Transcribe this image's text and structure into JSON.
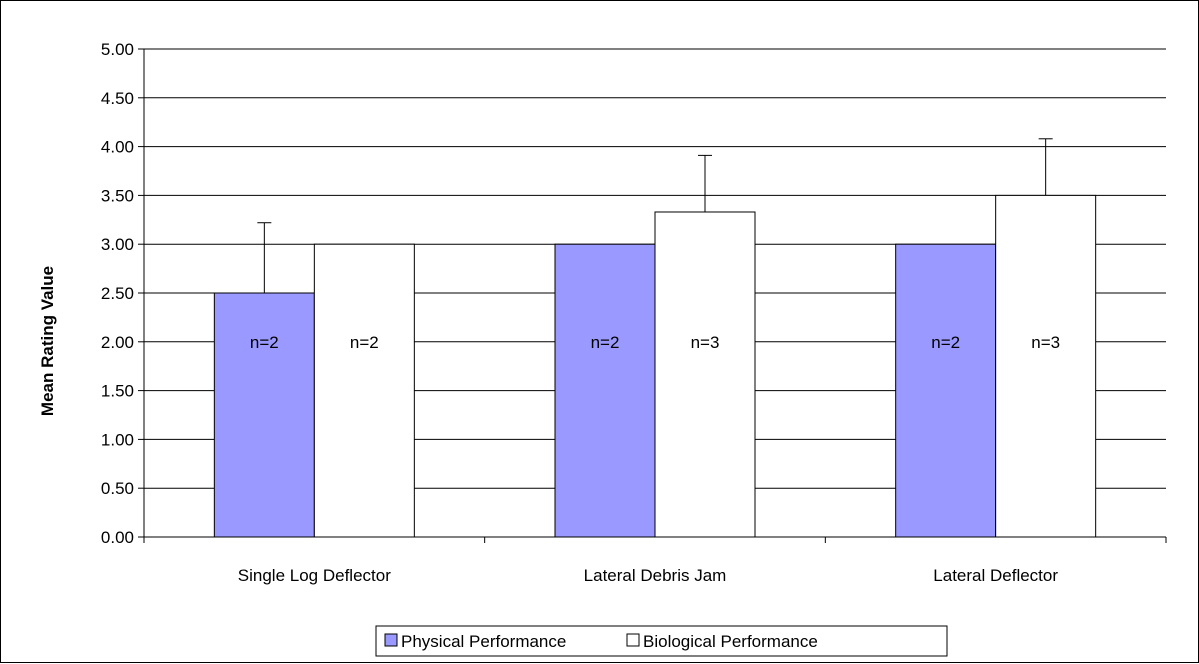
{
  "chart_data": {
    "type": "bar",
    "ylabel": "Mean Rating Value",
    "ylim": [
      0,
      5
    ],
    "ytick_step": 0.5,
    "yticks": [
      "0.00",
      "0.50",
      "1.00",
      "1.50",
      "2.00",
      "2.50",
      "3.00",
      "3.50",
      "4.00",
      "4.50",
      "5.00"
    ],
    "grid": true,
    "legend_position": "bottom",
    "categories": [
      "Single Log Deflector",
      "Lateral Debris Jam",
      "Lateral Deflector"
    ],
    "series": [
      {
        "name": "Physical Performance",
        "color": "#9999ff",
        "values": [
          2.5,
          3.0,
          3.0
        ],
        "error_upper": [
          3.22,
          null,
          null
        ],
        "n_labels": [
          "n=2",
          "n=2",
          "n=2"
        ]
      },
      {
        "name": "Biological Performance",
        "color": "#ffffff",
        "values": [
          3.0,
          3.33,
          3.5
        ],
        "error_upper": [
          null,
          3.91,
          4.08
        ],
        "n_labels": [
          "n=2",
          "n=3",
          "n=3"
        ]
      }
    ]
  }
}
